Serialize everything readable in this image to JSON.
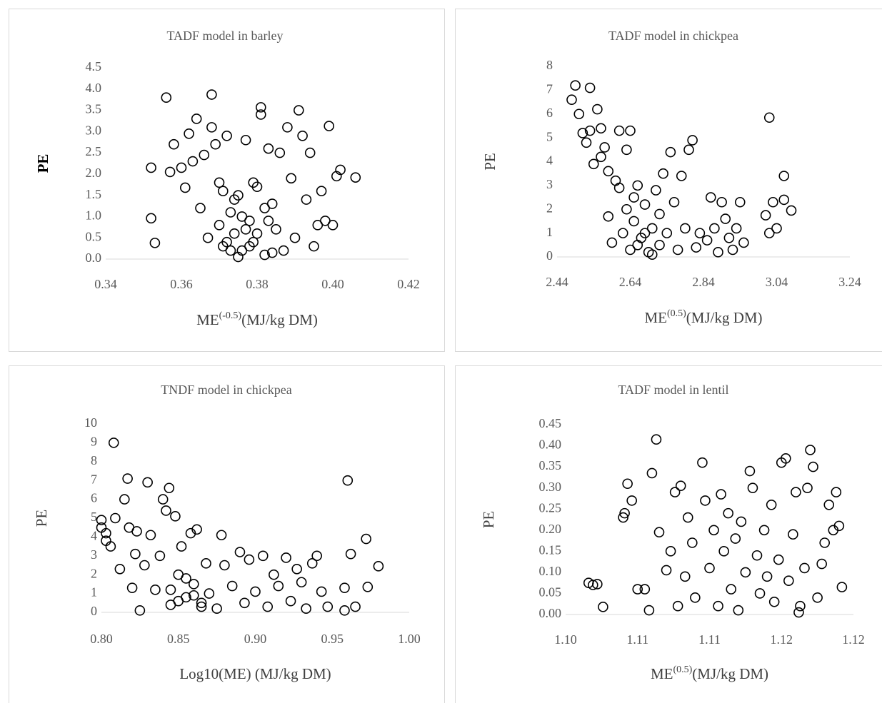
{
  "chart_data": [
    {
      "type": "scatter",
      "title": "TADF model in barley",
      "y_label": "PE",
      "x_label": [
        {
          "text": "ME"
        },
        {
          "text": "(-0.5)",
          "sup": true
        },
        {
          "text": "(MJ/kg DM)"
        }
      ],
      "color": "#000000",
      "xlim": [
        0.34,
        0.42
      ],
      "xticks": [
        0.34,
        0.36,
        0.38,
        {
          "value": 0.4,
          "label": "0.40"
        },
        0.42
      ],
      "ylim": [
        0,
        4.5
      ],
      "yticks": [
        {
          "value": 0,
          "label": "0.0"
        },
        0.5,
        {
          "value": 1,
          "label": "1.0"
        },
        1.5,
        {
          "value": 2,
          "label": "2.0"
        },
        2.5,
        {
          "value": 3,
          "label": "3.0"
        },
        3.5,
        {
          "value": 4,
          "label": "4.0"
        },
        4.5
      ],
      "x": [
        0.352,
        0.353,
        0.352,
        0.356,
        0.357,
        0.358,
        0.36,
        0.361,
        0.362,
        0.363,
        0.364,
        0.365,
        0.366,
        0.367,
        0.368,
        0.368,
        0.369,
        0.37,
        0.371,
        0.372,
        0.373,
        0.374,
        0.375,
        0.376,
        0.377,
        0.378,
        0.379,
        0.38,
        0.381,
        0.381,
        0.382,
        0.383,
        0.384,
        0.385,
        0.386,
        0.387,
        0.388,
        0.389,
        0.39,
        0.391,
        0.392,
        0.393,
        0.394,
        0.395,
        0.396,
        0.397,
        0.398,
        0.399,
        0.4,
        0.401,
        0.402,
        0.406,
        0.37,
        0.372,
        0.374,
        0.376,
        0.378,
        0.38,
        0.382,
        0.384,
        0.375,
        0.379,
        0.383,
        0.371,
        0.377,
        0.373
      ],
      "values": [
        0.96,
        0.38,
        2.15,
        3.8,
        2.05,
        2.7,
        2.15,
        1.68,
        2.95,
        2.3,
        3.3,
        1.2,
        2.45,
        0.5,
        3.87,
        3.1,
        2.7,
        1.8,
        0.3,
        2.9,
        1.1,
        0.6,
        1.5,
        0.2,
        2.8,
        0.9,
        0.4,
        1.7,
        3.57,
        3.4,
        0.1,
        2.6,
        1.3,
        0.7,
        2.5,
        0.2,
        3.1,
        1.9,
        0.5,
        3.5,
        2.9,
        1.4,
        2.5,
        0.3,
        0.8,
        1.6,
        0.9,
        3.13,
        0.8,
        1.95,
        2.1,
        1.92,
        0.8,
        0.4,
        1.4,
        1.0,
        0.3,
        0.6,
        1.2,
        0.15,
        0.05,
        1.8,
        0.9,
        1.6,
        0.7,
        0.2
      ]
    },
    {
      "type": "scatter",
      "title": "TADF model in chickpea",
      "y_label": "PE",
      "x_label": [
        {
          "text": "ME"
        },
        {
          "text": "(0.5)",
          "sup": true
        },
        {
          "text": "(MJ/kg DM)"
        }
      ],
      "color": "#000000",
      "xlim": [
        2.44,
        3.24
      ],
      "xticks": [
        2.44,
        2.64,
        2.84,
        3.04,
        3.24
      ],
      "ylim": [
        0,
        8
      ],
      "yticks": [
        0,
        1,
        2,
        3,
        4,
        5,
        6,
        7,
        8
      ],
      "x": [
        2.48,
        2.49,
        2.5,
        2.51,
        2.52,
        2.53,
        2.53,
        2.54,
        2.55,
        2.56,
        2.56,
        2.57,
        2.58,
        2.58,
        2.59,
        2.6,
        2.61,
        2.61,
        2.62,
        2.63,
        2.63,
        2.64,
        2.64,
        2.65,
        2.66,
        2.67,
        2.68,
        2.69,
        2.7,
        2.71,
        2.72,
        2.73,
        2.74,
        2.75,
        2.76,
        2.77,
        2.78,
        2.79,
        2.8,
        2.81,
        2.82,
        2.83,
        2.85,
        2.86,
        2.87,
        2.88,
        2.89,
        2.9,
        2.91,
        2.92,
        2.93,
        2.94,
        2.95,
        3.02,
        3.01,
        3.02,
        3.03,
        3.04,
        3.06,
        3.06,
        3.08,
        2.66,
        2.68,
        2.7,
        2.65,
        2.72
      ],
      "values": [
        6.6,
        7.2,
        6.0,
        5.2,
        4.8,
        7.1,
        5.3,
        3.9,
        6.2,
        5.4,
        4.2,
        4.6,
        1.7,
        3.6,
        0.6,
        3.2,
        5.3,
        2.9,
        1.0,
        4.5,
        2.0,
        5.3,
        0.3,
        1.5,
        3.0,
        0.8,
        2.2,
        0.2,
        1.2,
        2.8,
        0.5,
        3.5,
        1.0,
        4.4,
        2.3,
        0.3,
        3.4,
        1.2,
        4.5,
        4.9,
        0.4,
        1.0,
        0.7,
        2.5,
        1.2,
        0.2,
        2.3,
        1.6,
        0.8,
        0.3,
        1.2,
        2.3,
        0.6,
        5.85,
        1.75,
        1.0,
        2.3,
        1.2,
        3.4,
        2.4,
        1.95,
        0.5,
        1.0,
        0.1,
        2.5,
        1.8
      ]
    },
    {
      "type": "scatter",
      "title": "TNDF model in chickpea",
      "y_label": "PE",
      "x_label": [
        {
          "text": "Log10(ME) (MJ/kg DM)"
        }
      ],
      "color": "#000000",
      "xlim": [
        0.8,
        1
      ],
      "xticks": [
        {
          "value": 0.8,
          "label": "0.80"
        },
        0.85,
        {
          "value": 0.9,
          "label": "0.90"
        },
        0.95,
        {
          "value": 1,
          "label": "1.00"
        }
      ],
      "ylim": [
        0,
        10
      ],
      "yticks": [
        0,
        1,
        2,
        3,
        4,
        5,
        6,
        7,
        8,
        9,
        10
      ],
      "x": [
        0.8,
        0.8,
        0.803,
        0.803,
        0.806,
        0.808,
        0.809,
        0.812,
        0.815,
        0.817,
        0.818,
        0.82,
        0.822,
        0.823,
        0.825,
        0.828,
        0.83,
        0.832,
        0.835,
        0.838,
        0.84,
        0.842,
        0.844,
        0.845,
        0.848,
        0.85,
        0.852,
        0.855,
        0.858,
        0.86,
        0.862,
        0.865,
        0.868,
        0.87,
        0.875,
        0.878,
        0.88,
        0.885,
        0.89,
        0.893,
        0.896,
        0.9,
        0.905,
        0.908,
        0.912,
        0.915,
        0.92,
        0.923,
        0.927,
        0.93,
        0.933,
        0.937,
        0.94,
        0.943,
        0.947,
        0.958,
        0.958,
        0.96,
        0.962,
        0.965,
        0.972,
        0.973,
        0.98,
        0.85,
        0.86,
        0.845,
        0.855,
        0.865
      ],
      "values": [
        4.9,
        4.5,
        4.2,
        3.8,
        3.5,
        9.0,
        5.0,
        2.3,
        6.0,
        7.1,
        4.5,
        1.3,
        3.1,
        4.3,
        0.1,
        2.5,
        6.9,
        4.1,
        1.2,
        3.0,
        6.0,
        5.4,
        6.6,
        0.4,
        5.1,
        2.0,
        3.5,
        0.8,
        4.2,
        1.5,
        4.4,
        0.3,
        2.6,
        1.0,
        0.2,
        4.1,
        2.5,
        1.4,
        3.2,
        0.5,
        2.8,
        1.1,
        3.0,
        0.3,
        2.0,
        1.4,
        2.9,
        0.6,
        2.3,
        1.6,
        0.2,
        2.6,
        3.0,
        1.1,
        0.3,
        1.3,
        0.1,
        7.0,
        3.1,
        0.3,
        3.9,
        1.35,
        2.45,
        0.6,
        0.9,
        1.2,
        1.8,
        0.5
      ]
    },
    {
      "type": "scatter",
      "title": "TADF model in lentil",
      "y_label": "PE",
      "x_label": [
        {
          "text": "ME"
        },
        {
          "text": "(0.5)",
          "sup": true
        },
        {
          "text": "(MJ/kg DM)"
        }
      ],
      "color": "#000000",
      "xlim": [
        1.1,
        1.12
      ],
      "xticks": [
        {
          "value": 1.1,
          "label": "1.10"
        },
        {
          "value": 1.105,
          "label": "1.11"
        },
        {
          "value": 1.11,
          "label": "1.11"
        },
        {
          "value": 1.115,
          "label": "1.12"
        },
        {
          "value": 1.12,
          "label": "1.12"
        }
      ],
      "ylim": [
        0,
        0.45
      ],
      "yticks": [
        {
          "value": 0,
          "label": "0.00"
        },
        0.05,
        {
          "value": 0.1,
          "label": "0.10"
        },
        0.15,
        {
          "value": 0.2,
          "label": "0.20"
        },
        0.25,
        {
          "value": 0.3,
          "label": "0.30"
        },
        0.35,
        {
          "value": 0.4,
          "label": "0.40"
        },
        0.45
      ],
      "x": [
        1.1016,
        1.1019,
        1.1022,
        1.1026,
        1.104,
        1.1046,
        1.1043,
        1.1041,
        1.105,
        1.1055,
        1.1058,
        1.106,
        1.1063,
        1.1065,
        1.107,
        1.1073,
        1.1076,
        1.1078,
        1.108,
        1.1083,
        1.1085,
        1.1088,
        1.109,
        1.1095,
        1.1097,
        1.11,
        1.1103,
        1.1106,
        1.1108,
        1.111,
        1.1113,
        1.1115,
        1.1118,
        1.112,
        1.1122,
        1.1125,
        1.1128,
        1.113,
        1.1133,
        1.1135,
        1.1138,
        1.114,
        1.1143,
        1.1145,
        1.1148,
        1.115,
        1.1153,
        1.1155,
        1.1158,
        1.116,
        1.1163,
        1.1166,
        1.117,
        1.1172,
        1.1175,
        1.1178,
        1.118,
        1.1183,
        1.1186,
        1.1188,
        1.119,
        1.1192,
        1.1168,
        1.1162
      ],
      "values": [
        0.075,
        0.07,
        0.072,
        0.018,
        0.23,
        0.27,
        0.31,
        0.24,
        0.06,
        0.06,
        0.01,
        0.335,
        0.415,
        0.195,
        0.105,
        0.15,
        0.29,
        0.02,
        0.305,
        0.09,
        0.23,
        0.17,
        0.04,
        0.36,
        0.27,
        0.11,
        0.2,
        0.02,
        0.285,
        0.15,
        0.24,
        0.06,
        0.18,
        0.01,
        0.22,
        0.1,
        0.34,
        0.3,
        0.14,
        0.05,
        0.2,
        0.09,
        0.26,
        0.03,
        0.13,
        0.36,
        0.37,
        0.08,
        0.19,
        0.29,
        0.02,
        0.11,
        0.39,
        0.35,
        0.04,
        0.12,
        0.17,
        0.26,
        0.2,
        0.29,
        0.21,
        0.065,
        0.3,
        0.005
      ]
    }
  ]
}
